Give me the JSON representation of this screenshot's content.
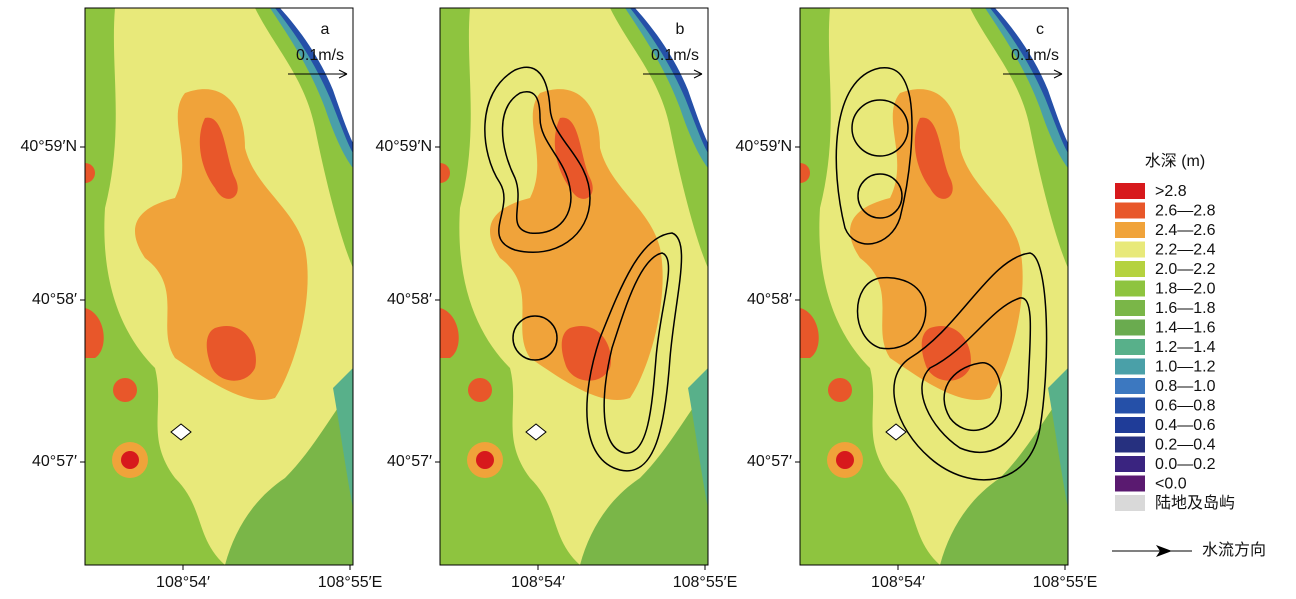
{
  "panels": [
    {
      "label": "a",
      "scale_label": "0.1m/s",
      "yticks": [
        "40°59′N",
        "40°58′",
        "40°57′"
      ],
      "xticks": [
        "108°54′",
        "108°55′E"
      ]
    },
    {
      "label": "b",
      "scale_label": "0.1m/s",
      "yticks": [
        "40°59′N",
        "40°58′",
        "40°57′"
      ],
      "xticks": [
        "108°54′",
        "108°55′E"
      ]
    },
    {
      "label": "c",
      "scale_label": "0.1m/s",
      "yticks": [
        "40°59′N",
        "40°58′",
        "40°57′"
      ],
      "xticks": [
        "108°54′",
        "108°55′E"
      ]
    }
  ],
  "legend": {
    "title": "水深 (m)",
    "items": [
      {
        "label": ">2.8",
        "color": "#d7191c"
      },
      {
        "label": "2.6—2.8",
        "color": "#e8572a"
      },
      {
        "label": "2.4—2.6",
        "color": "#f0a33a"
      },
      {
        "label": "2.2—2.4",
        "color": "#e8e97a"
      },
      {
        "label": "2.0—2.2",
        "color": "#b5d23f"
      },
      {
        "label": "1.8—2.0",
        "color": "#8ec43f"
      },
      {
        "label": "1.6—1.8",
        "color": "#7ab648"
      },
      {
        "label": "1.4—1.6",
        "color": "#6aab4f"
      },
      {
        "label": "1.2—1.4",
        "color": "#58b08a"
      },
      {
        "label": "1.0—1.2",
        "color": "#4aa0a8"
      },
      {
        "label": "0.8—1.0",
        "color": "#3c78c0"
      },
      {
        "label": "0.6—0.8",
        "color": "#2550a8"
      },
      {
        "label": "0.4—0.6",
        "color": "#1f3c98"
      },
      {
        "label": "0.2—0.4",
        "color": "#26307f"
      },
      {
        "label": "0.0—0.2",
        "color": "#3a2480"
      },
      {
        "label": "<0.0",
        "color": "#5a1a70"
      },
      {
        "label": "陆地及岛屿",
        "color": "#d9d9d9"
      }
    ],
    "flow_label": "水流方向"
  }
}
